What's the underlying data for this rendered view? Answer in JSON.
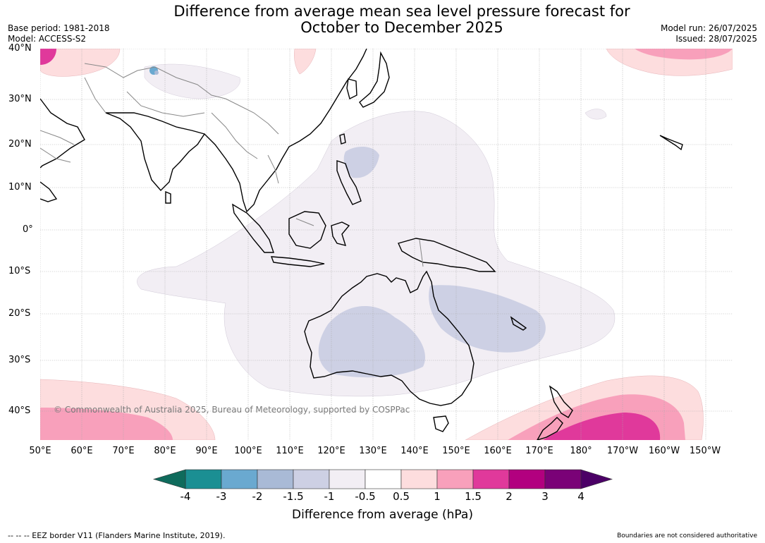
{
  "title": {
    "line1": "Difference from average mean sea level pressure forecast for",
    "line2": "October to December 2025"
  },
  "meta": {
    "base_period": "Base period: 1981-2018",
    "model": "Model: ACCESS-S2",
    "model_run": "Model run: 26/07/2025",
    "issued": "Issued: 28/07/2025"
  },
  "credit": "© Commonwealth of Australia 2025, Bureau of Meteorology, supported by COSPPac",
  "lat_labels": [
    "40°N",
    "30°N",
    "20°N",
    "10°N",
    "0°",
    "10°S",
    "20°S",
    "30°S",
    "40°S"
  ],
  "lon_labels": [
    "50°E",
    "60°E",
    "70°E",
    "80°E",
    "90°E",
    "100°E",
    "110°E",
    "120°E",
    "130°E",
    "140°E",
    "150°E",
    "160°E",
    "170°E",
    "180°",
    "170°W",
    "160°W",
    "150°W"
  ],
  "colorbar": {
    "ticks": [
      "-4",
      "-3",
      "-2",
      "-1.5",
      "-1",
      "-0.5",
      "0.5",
      "1",
      "1.5",
      "2",
      "3",
      "4"
    ],
    "colors": [
      "#1b8f93",
      "#6aa9d0",
      "#a9bad6",
      "#cdd0e4",
      "#f2eef4",
      "#ffffff",
      "#fdddde",
      "#f8a0bb",
      "#e0399b",
      "#b2007f",
      "#7a0277"
    ],
    "low_color": "#0f6b5c",
    "high_color": "#4b0066",
    "label": "Difference from average (hPa)"
  },
  "footer": {
    "left": "--  --  -- EEZ border V11 (Flanders Marine Institute, 2019).",
    "right": "Boundaries are not considered authoritative"
  }
}
